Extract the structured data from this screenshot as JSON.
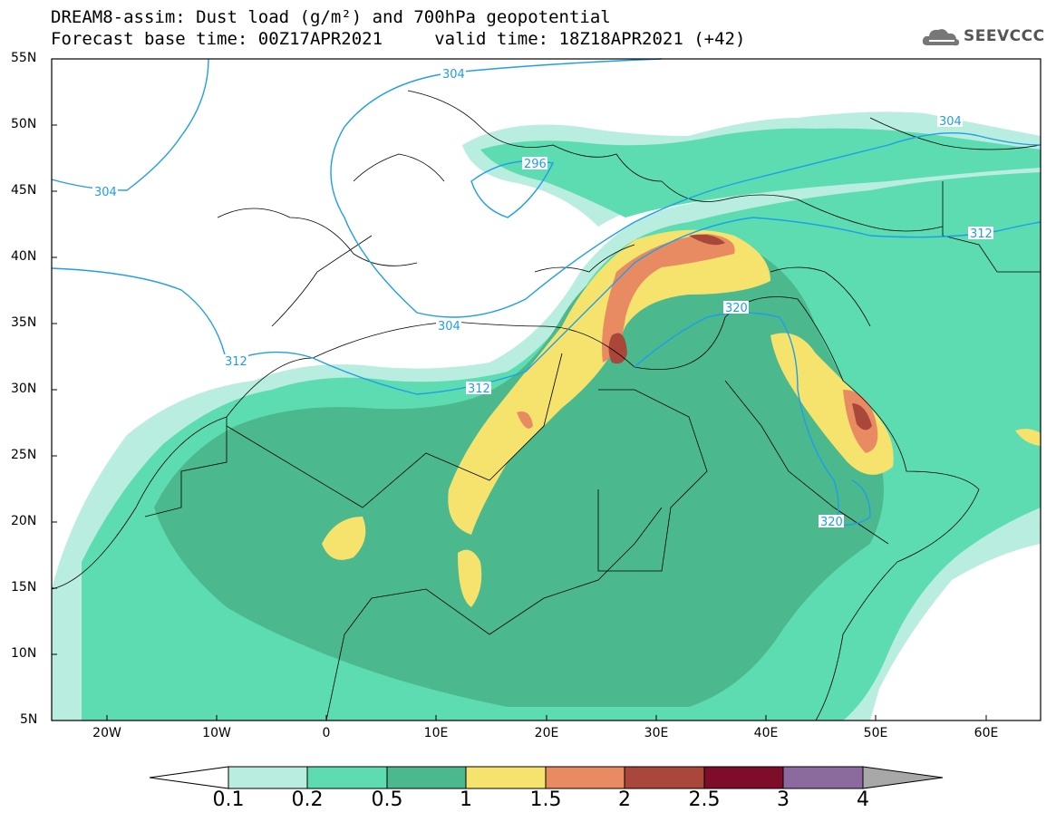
{
  "title": {
    "line1": "DREAM8-assim: Dust load (g/m²) and 700hPa geopotential",
    "line2": "Forecast base time: 00Z17APR2021     valid time: 18Z18APR2021 (+42)"
  },
  "logo": {
    "text": "SEEVCCC",
    "icon": "cloud-icon"
  },
  "axes": {
    "lat_labels": [
      "55N",
      "50N",
      "45N",
      "40N",
      "35N",
      "30N",
      "25N",
      "20N",
      "15N",
      "10N",
      "5N"
    ],
    "lon_labels": [
      "20W",
      "10W",
      "0",
      "10E",
      "20E",
      "30E",
      "40E",
      "50E",
      "60E"
    ]
  },
  "contour_labels": [
    "304",
    "304",
    "304",
    "296",
    "312",
    "312",
    "304",
    "312",
    "320",
    "320"
  ],
  "colorbar": {
    "levels": [
      "0.1",
      "0.2",
      "0.5",
      "1",
      "1.5",
      "2",
      "2.5",
      "3",
      "4"
    ],
    "colors": [
      "#ffffff",
      "#b8ede0",
      "#5cdcb0",
      "#4bb88e",
      "#f5e36e",
      "#e98b62",
      "#a8473a",
      "#7e0d2a",
      "#8c6aa0",
      "#a8a8a8"
    ]
  },
  "colors": {
    "contour": "#1f9ee8",
    "border": "#000000"
  }
}
